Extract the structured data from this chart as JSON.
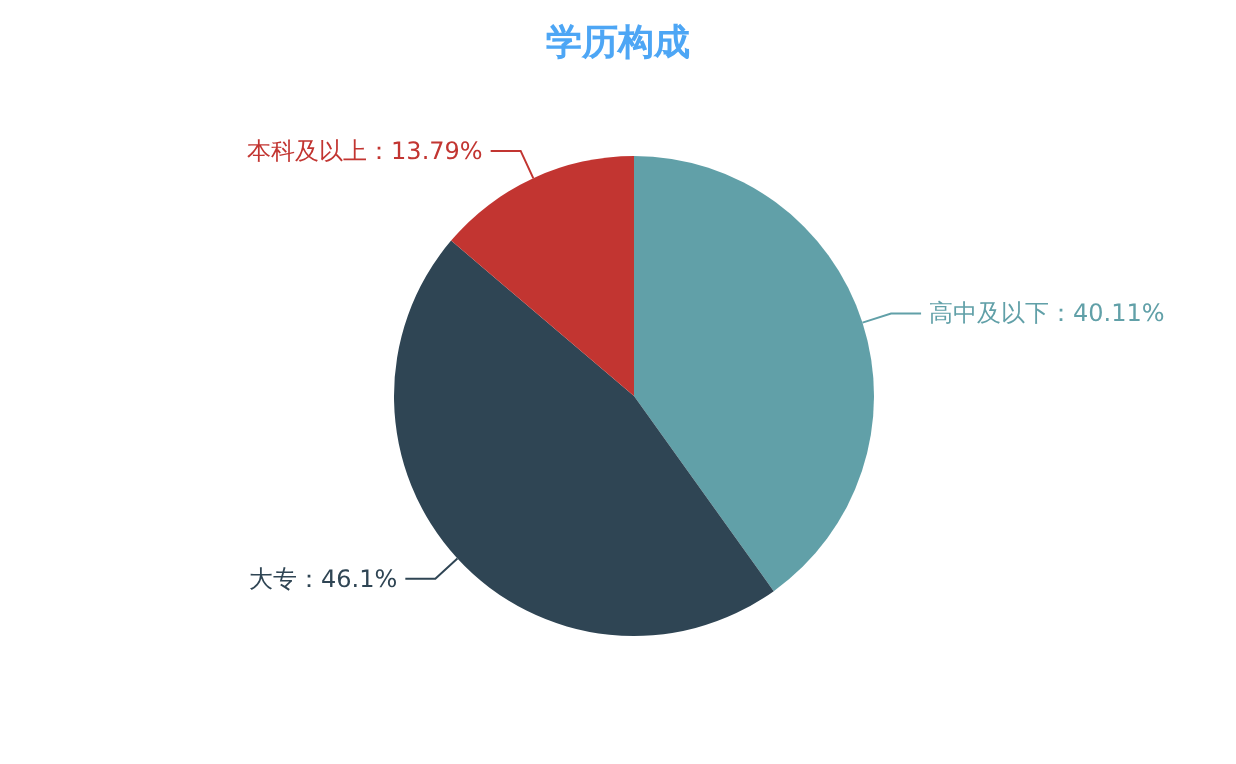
{
  "chart_data": {
    "type": "pie",
    "title": "学历构成",
    "categories": [
      "高中及以下",
      "大专",
      "本科及以上"
    ],
    "values": [
      40.11,
      46.1,
      13.79
    ],
    "value_labels": [
      "40.11%",
      "46.1%",
      "13.79%"
    ],
    "colors": [
      "#61a0a8",
      "#2f4554",
      "#c23531"
    ],
    "legend": false
  }
}
